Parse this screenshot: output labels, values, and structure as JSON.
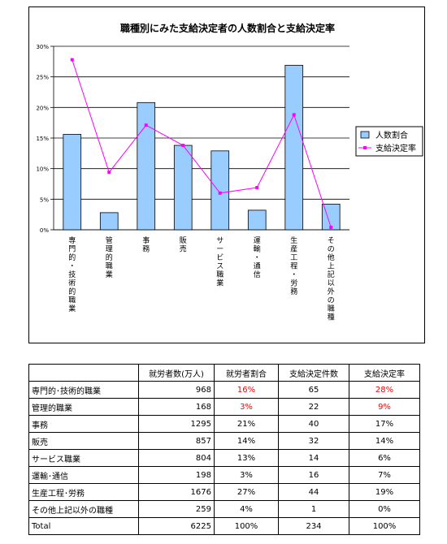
{
  "chart_data": {
    "type": "bar+line",
    "title": "職種別にみた支給決定者の人数割合と支給決定率",
    "categories": [
      "専門的・技術的職業",
      "管理的職業",
      "事務",
      "販売",
      "サービス職業",
      "運輸・通信",
      "生産工程・労務",
      "その他上記以外の職種"
    ],
    "series": [
      {
        "name": "人数割合",
        "type": "bar",
        "color": "#99ccff",
        "values": [
          15.6,
          2.8,
          20.8,
          13.8,
          12.9,
          3.2,
          26.9,
          4.2
        ]
      },
      {
        "name": "支給決定率",
        "type": "line",
        "color": "#ff00ff",
        "values": [
          27.8,
          9.4,
          17.1,
          13.8,
          6.0,
          6.9,
          18.8,
          0.4
        ]
      }
    ],
    "ylim": [
      0,
      30
    ],
    "yticks": [
      "0%",
      "5%",
      "10%",
      "15%",
      "20%",
      "25%",
      "30%"
    ],
    "legend_position": "right",
    "grid": true
  },
  "table": {
    "headers": [
      "",
      "就労者数(万人)",
      "就労者割合",
      "支給決定件数",
      "支給決定率"
    ],
    "rows": [
      {
        "cells": [
          "専門的･技術的職業",
          "968",
          "16%",
          "65",
          "28%"
        ],
        "red": [
          false,
          false,
          true,
          false,
          true
        ]
      },
      {
        "cells": [
          "管理的職業",
          "168",
          "3%",
          "22",
          "9%"
        ],
        "red": [
          false,
          false,
          true,
          false,
          true
        ]
      },
      {
        "cells": [
          "事務",
          "1295",
          "21%",
          "40",
          "17%"
        ],
        "red": [
          false,
          false,
          false,
          false,
          false
        ]
      },
      {
        "cells": [
          "販売",
          "857",
          "14%",
          "32",
          "14%"
        ],
        "red": [
          false,
          false,
          false,
          false,
          false
        ]
      },
      {
        "cells": [
          "サービス職業",
          "804",
          "13%",
          "14",
          "6%"
        ],
        "red": [
          false,
          false,
          false,
          false,
          false
        ]
      },
      {
        "cells": [
          "運輸･通信",
          "198",
          "3%",
          "16",
          "7%"
        ],
        "red": [
          false,
          false,
          false,
          false,
          false
        ]
      },
      {
        "cells": [
          "生産工程･労務",
          "1676",
          "27%",
          "44",
          "19%"
        ],
        "red": [
          false,
          false,
          false,
          false,
          false
        ]
      },
      {
        "cells": [
          "その他上記以外の職種",
          "259",
          "4%",
          "1",
          "0%"
        ],
        "red": [
          false,
          false,
          false,
          false,
          false
        ]
      },
      {
        "cells": [
          "Total",
          "6225",
          "100%",
          "234",
          "100%"
        ],
        "red": [
          false,
          false,
          false,
          false,
          false
        ]
      }
    ],
    "highlight_color": "#ff0000"
  }
}
